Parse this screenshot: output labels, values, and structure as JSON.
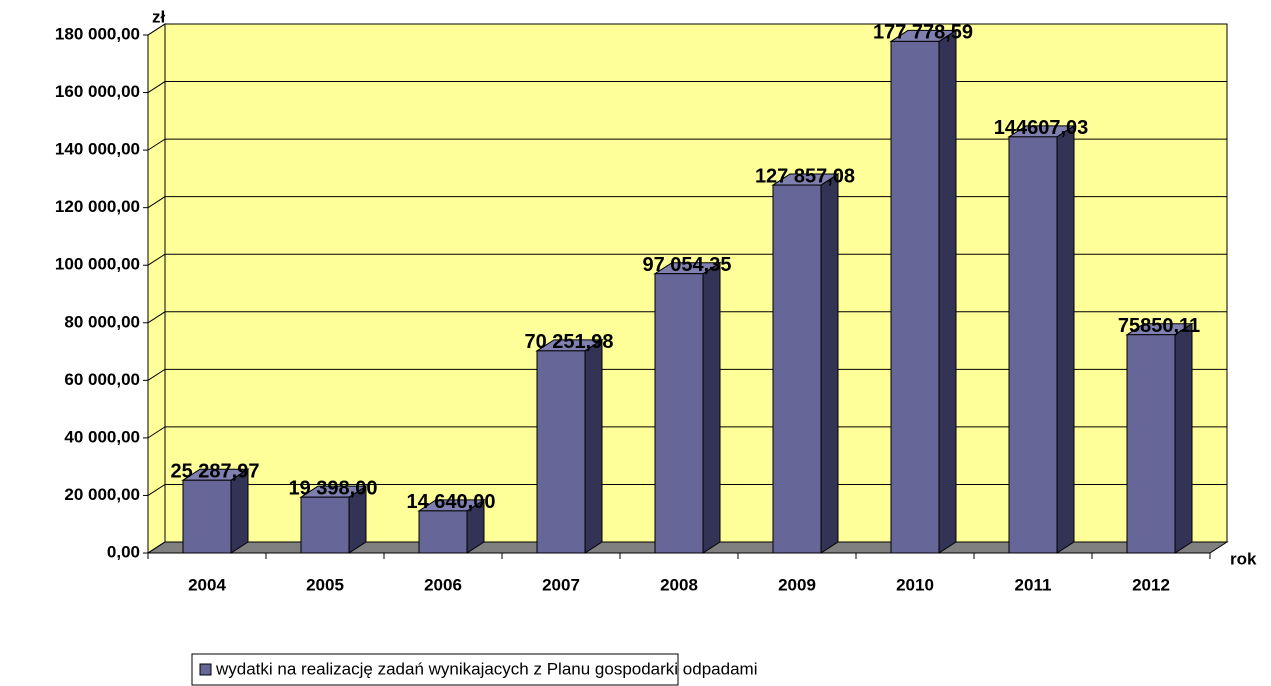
{
  "chart_data": {
    "type": "bar3d",
    "y_label": "zł",
    "x_label": "rok",
    "categories": [
      "2004",
      "2005",
      "2006",
      "2007",
      "2008",
      "2009",
      "2010",
      "2011",
      "2012"
    ],
    "series": [
      {
        "name": "wydatki na realizację zadań wynikajacych z Planu gospodarki odpadami",
        "color": "#666699",
        "values": [
          25287.97,
          19398.0,
          14640.0,
          70251.98,
          97054.35,
          127857.08,
          177778.59,
          144607.03,
          75850.11
        ],
        "value_labels": [
          "25 287,97",
          "19 398,00",
          "14 640,00",
          "70 251,98",
          "97 054,35",
          "127 857,08",
          "177 778,59",
          "144607,03",
          "75850,11"
        ]
      }
    ],
    "ylim": [
      0,
      180000
    ],
    "yticks": [
      {
        "value": 0,
        "label": "0,00"
      },
      {
        "value": 20000,
        "label": "20 000,00"
      },
      {
        "value": 40000,
        "label": "40 000,00"
      },
      {
        "value": 60000,
        "label": "60 000,00"
      },
      {
        "value": 80000,
        "label": "80 000,00"
      },
      {
        "value": 100000,
        "label": "100 000,00"
      },
      {
        "value": 120000,
        "label": "120 000,00"
      },
      {
        "value": 140000,
        "label": "140 000,00"
      },
      {
        "value": 160000,
        "label": "160 000,00"
      },
      {
        "value": 180000,
        "label": "180 000,00"
      }
    ],
    "grid": true,
    "wall_color": "#ffff99",
    "floor_color": "#808080",
    "legend": "bottom"
  }
}
